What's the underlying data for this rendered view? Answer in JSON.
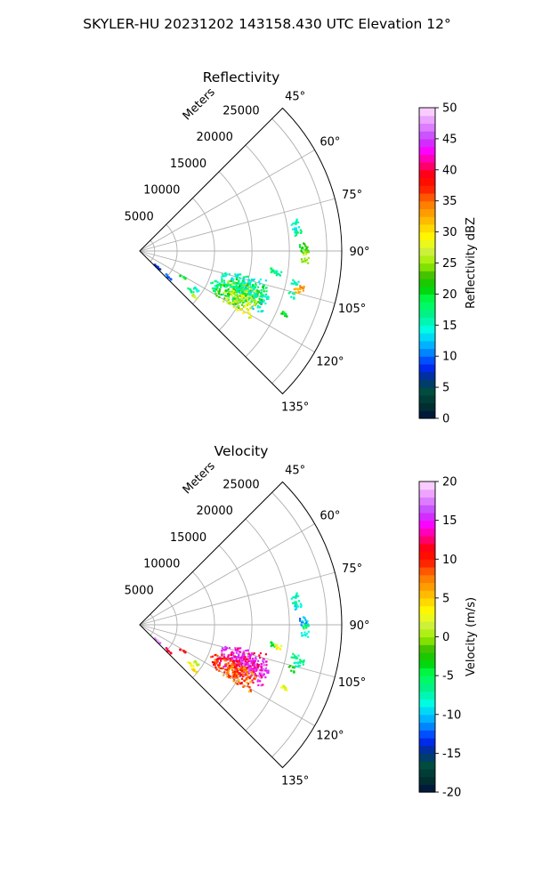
{
  "figure_title": "SKYLER-HU  20231202  143158.430 UTC Elevation 12°",
  "chart_data": [
    {
      "type": "ppi-sector",
      "title": "Reflectivity",
      "range_label": "Meters",
      "theta_range_deg": [
        45,
        135
      ],
      "radial_range_m": [
        0,
        27000
      ],
      "radial_ticks": [
        5000,
        10000,
        15000,
        20000,
        25000
      ],
      "angle_ticks": [
        45,
        60,
        75,
        90,
        105,
        120,
        135
      ],
      "grid": true,
      "colorbar": {
        "label": "Reflectivity dBZ",
        "min": 0,
        "max": 50,
        "ticks": [
          0,
          5,
          10,
          15,
          20,
          25,
          30,
          35,
          40,
          45,
          50
        ]
      },
      "echoes": [
        {
          "theta": 79,
          "r": 21000,
          "value": 15
        },
        {
          "theta": 82,
          "r": 21000,
          "value": 14
        },
        {
          "theta": 83,
          "r": 21200,
          "value": 17
        },
        {
          "theta": 88,
          "r": 21800,
          "value": 21
        },
        {
          "theta": 89,
          "r": 21900,
          "value": 22
        },
        {
          "theta": 90,
          "r": 22000,
          "value": 25
        },
        {
          "theta": 93,
          "r": 22000,
          "value": 24
        },
        {
          "theta": 98,
          "r": 18000,
          "value": 18
        },
        {
          "theta": 99,
          "r": 18500,
          "value": 16
        },
        {
          "theta": 101,
          "r": 21000,
          "value": 15
        },
        {
          "theta": 103,
          "r": 21900,
          "value": 34
        },
        {
          "theta": 104,
          "r": 21500,
          "value": 32
        },
        {
          "theta": 106,
          "r": 21000,
          "value": 16
        },
        {
          "theta": 107,
          "r": 15000,
          "value": 16
        },
        {
          "theta": 108,
          "r": 13500,
          "value": 15
        },
        {
          "theta": 110,
          "r": 15500,
          "value": 20
        },
        {
          "theta": 112,
          "r": 14500,
          "value": 25
        },
        {
          "theta": 113,
          "r": 16000,
          "value": 15
        },
        {
          "theta": 114,
          "r": 12500,
          "value": 17
        },
        {
          "theta": 116,
          "r": 13500,
          "value": 22
        },
        {
          "theta": 117,
          "r": 15000,
          "value": 28
        },
        {
          "theta": 113,
          "r": 21000,
          "value": 20
        },
        {
          "theta": 121,
          "r": 6500,
          "value": 20
        },
        {
          "theta": 124,
          "r": 9000,
          "value": 15
        },
        {
          "theta": 128,
          "r": 8500,
          "value": 17
        },
        {
          "theta": 130,
          "r": 9500,
          "value": 26
        },
        {
          "theta": 132,
          "r": 5000,
          "value": 10
        },
        {
          "theta": 132,
          "r": 3000,
          "value": 8
        }
      ]
    },
    {
      "type": "ppi-sector",
      "title": "Velocity",
      "range_label": "Meters",
      "theta_range_deg": [
        45,
        135
      ],
      "radial_range_m": [
        0,
        27000
      ],
      "radial_ticks": [
        5000,
        10000,
        15000,
        20000,
        25000
      ],
      "angle_ticks": [
        45,
        60,
        75,
        90,
        105,
        120,
        135
      ],
      "grid": true,
      "colorbar": {
        "label": "Velocity (m/s)",
        "min": -20,
        "max": 20,
        "ticks": [
          -20,
          -15,
          -10,
          -5,
          0,
          5,
          10,
          15,
          20
        ]
      },
      "echoes": [
        {
          "theta": 79,
          "r": 21000,
          "value": -8
        },
        {
          "theta": 82,
          "r": 21000,
          "value": -7
        },
        {
          "theta": 83,
          "r": 21200,
          "value": -9
        },
        {
          "theta": 88,
          "r": 21800,
          "value": -11
        },
        {
          "theta": 89,
          "r": 21900,
          "value": -10
        },
        {
          "theta": 90,
          "r": 22000,
          "value": -6
        },
        {
          "theta": 93,
          "r": 22000,
          "value": -9
        },
        {
          "theta": 98,
          "r": 18000,
          "value": -4
        },
        {
          "theta": 99,
          "r": 18500,
          "value": 3
        },
        {
          "theta": 101,
          "r": 21000,
          "value": -7
        },
        {
          "theta": 103,
          "r": 21900,
          "value": -6
        },
        {
          "theta": 104,
          "r": 21500,
          "value": -8
        },
        {
          "theta": 106,
          "r": 21000,
          "value": -3
        },
        {
          "theta": 107,
          "r": 15000,
          "value": 14
        },
        {
          "theta": 108,
          "r": 13500,
          "value": 15
        },
        {
          "theta": 110,
          "r": 15500,
          "value": 16
        },
        {
          "theta": 112,
          "r": 14500,
          "value": 13
        },
        {
          "theta": 113,
          "r": 16000,
          "value": 15
        },
        {
          "theta": 114,
          "r": 12500,
          "value": 10
        },
        {
          "theta": 116,
          "r": 13500,
          "value": 9
        },
        {
          "theta": 117,
          "r": 15000,
          "value": 8
        },
        {
          "theta": 113,
          "r": 21000,
          "value": 2
        },
        {
          "theta": 121,
          "r": 6500,
          "value": 11
        },
        {
          "theta": 124,
          "r": 9000,
          "value": 1
        },
        {
          "theta": 128,
          "r": 8500,
          "value": 3
        },
        {
          "theta": 130,
          "r": 9500,
          "value": 4
        },
        {
          "theta": 132,
          "r": 5000,
          "value": 12
        },
        {
          "theta": 132,
          "r": 3000,
          "value": 18
        }
      ]
    }
  ]
}
